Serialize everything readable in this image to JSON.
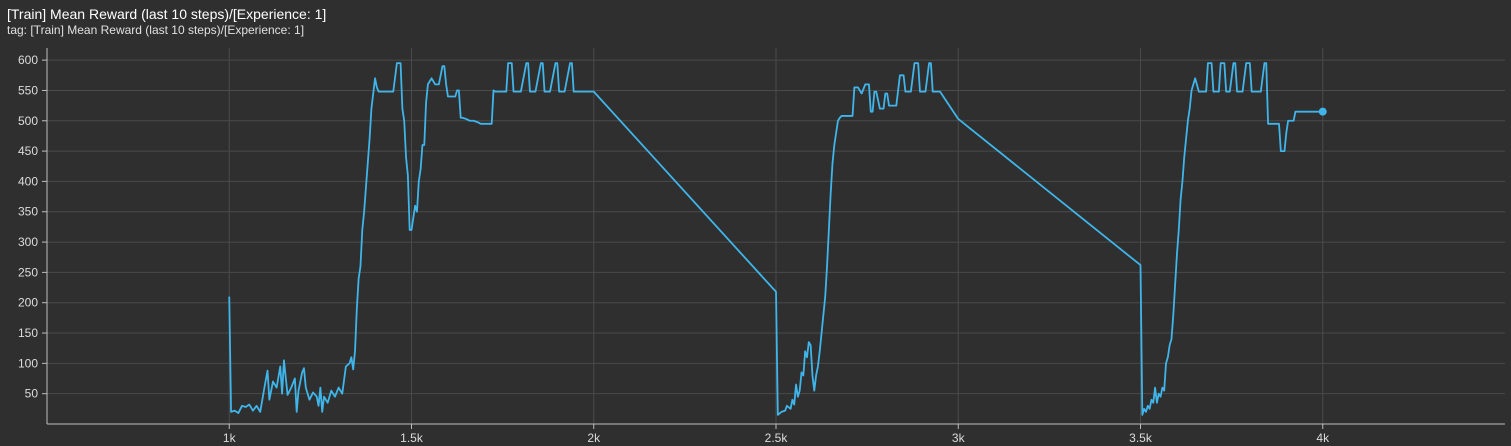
{
  "header": {
    "title": "[Train] Mean Reward (last 10 steps)/[Experience: 1]",
    "tag": "tag: [Train] Mean Reward (last 10 steps)/[Experience: 1]"
  },
  "colors": {
    "background": "#2f2f2f",
    "grid": "#4a4a4a",
    "axis": "#bdbdbd",
    "series": "#3fb5ea"
  },
  "chart_data": {
    "type": "line",
    "title": "[Train] Mean Reward (last 10 steps)/[Experience: 1]",
    "xlabel": "",
    "ylabel": "",
    "xlim": [
      500,
      4500
    ],
    "ylim": [
      0,
      620
    ],
    "grid": true,
    "x_ticks": [
      1000,
      1500,
      2000,
      2500,
      3000,
      3500,
      4000
    ],
    "x_tick_labels": [
      "1k",
      "1.5k",
      "2k",
      "2.5k",
      "3k",
      "3.5k",
      "4k"
    ],
    "y_ticks": [
      50,
      100,
      150,
      200,
      250,
      300,
      350,
      400,
      450,
      500,
      550,
      600
    ],
    "y_tick_labels": [
      "50",
      "100",
      "150",
      "200",
      "250",
      "300",
      "350",
      "400",
      "450",
      "500",
      "550",
      "600"
    ],
    "series": [
      {
        "points": [
          [
            1000,
            210
          ],
          [
            1005,
            20
          ],
          [
            1015,
            22
          ],
          [
            1025,
            18
          ],
          [
            1035,
            30
          ],
          [
            1045,
            28
          ],
          [
            1055,
            32
          ],
          [
            1065,
            22
          ],
          [
            1075,
            30
          ],
          [
            1085,
            20
          ],
          [
            1095,
            55
          ],
          [
            1105,
            88
          ],
          [
            1110,
            40
          ],
          [
            1120,
            70
          ],
          [
            1130,
            60
          ],
          [
            1140,
            95
          ],
          [
            1145,
            50
          ],
          [
            1150,
            105
          ],
          [
            1160,
            48
          ],
          [
            1170,
            60
          ],
          [
            1180,
            75
          ],
          [
            1185,
            20
          ],
          [
            1190,
            55
          ],
          [
            1200,
            85
          ],
          [
            1205,
            92
          ],
          [
            1210,
            60
          ],
          [
            1220,
            40
          ],
          [
            1230,
            52
          ],
          [
            1240,
            45
          ],
          [
            1245,
            30
          ],
          [
            1250,
            60
          ],
          [
            1255,
            20
          ],
          [
            1260,
            45
          ],
          [
            1270,
            35
          ],
          [
            1280,
            55
          ],
          [
            1290,
            45
          ],
          [
            1300,
            60
          ],
          [
            1310,
            50
          ],
          [
            1320,
            95
          ],
          [
            1330,
            100
          ],
          [
            1335,
            110
          ],
          [
            1340,
            90
          ],
          [
            1345,
            120
          ],
          [
            1350,
            190
          ],
          [
            1355,
            240
          ],
          [
            1360,
            260
          ],
          [
            1365,
            320
          ],
          [
            1370,
            350
          ],
          [
            1375,
            390
          ],
          [
            1380,
            430
          ],
          [
            1385,
            470
          ],
          [
            1390,
            520
          ],
          [
            1395,
            545
          ],
          [
            1400,
            570
          ],
          [
            1405,
            555
          ],
          [
            1410,
            548
          ],
          [
            1420,
            548
          ],
          [
            1430,
            548
          ],
          [
            1440,
            548
          ],
          [
            1450,
            548
          ],
          [
            1460,
            595
          ],
          [
            1465,
            595
          ],
          [
            1470,
            595
          ],
          [
            1475,
            520
          ],
          [
            1480,
            500
          ],
          [
            1485,
            440
          ],
          [
            1490,
            410
          ],
          [
            1495,
            320
          ],
          [
            1500,
            320
          ],
          [
            1505,
            340
          ],
          [
            1510,
            360
          ],
          [
            1515,
            350
          ],
          [
            1520,
            400
          ],
          [
            1525,
            420
          ],
          [
            1530,
            460
          ],
          [
            1535,
            460
          ],
          [
            1540,
            530
          ],
          [
            1545,
            560
          ],
          [
            1555,
            570
          ],
          [
            1565,
            560
          ],
          [
            1575,
            560
          ],
          [
            1585,
            590
          ],
          [
            1590,
            590
          ],
          [
            1595,
            560
          ],
          [
            1600,
            540
          ],
          [
            1610,
            540
          ],
          [
            1620,
            540
          ],
          [
            1625,
            550
          ],
          [
            1630,
            550
          ],
          [
            1635,
            505
          ],
          [
            1640,
            505
          ],
          [
            1650,
            503
          ],
          [
            1660,
            500
          ],
          [
            1670,
            500
          ],
          [
            1680,
            498
          ],
          [
            1690,
            495
          ],
          [
            1700,
            495
          ],
          [
            1710,
            495
          ],
          [
            1720,
            495
          ],
          [
            1725,
            550
          ],
          [
            1730,
            548
          ],
          [
            1740,
            548
          ],
          [
            1750,
            548
          ],
          [
            1760,
            548
          ],
          [
            1765,
            595
          ],
          [
            1775,
            595
          ],
          [
            1780,
            548
          ],
          [
            1790,
            548
          ],
          [
            1800,
            548
          ],
          [
            1815,
            595
          ],
          [
            1820,
            595
          ],
          [
            1825,
            548
          ],
          [
            1830,
            548
          ],
          [
            1840,
            548
          ],
          [
            1855,
            595
          ],
          [
            1860,
            595
          ],
          [
            1865,
            548
          ],
          [
            1880,
            548
          ],
          [
            1895,
            595
          ],
          [
            1900,
            595
          ],
          [
            1905,
            548
          ],
          [
            1920,
            548
          ],
          [
            1935,
            595
          ],
          [
            1940,
            595
          ],
          [
            1945,
            548
          ],
          [
            1960,
            548
          ],
          [
            1975,
            548
          ],
          [
            2000,
            548
          ],
          [
            2500,
            218
          ],
          [
            2505,
            15
          ],
          [
            2515,
            20
          ],
          [
            2525,
            22
          ],
          [
            2530,
            30
          ],
          [
            2540,
            25
          ],
          [
            2545,
            40
          ],
          [
            2550,
            32
          ],
          [
            2555,
            65
          ],
          [
            2560,
            45
          ],
          [
            2565,
            55
          ],
          [
            2570,
            85
          ],
          [
            2575,
            80
          ],
          [
            2580,
            120
          ],
          [
            2585,
            110
          ],
          [
            2590,
            135
          ],
          [
            2595,
            130
          ],
          [
            2600,
            80
          ],
          [
            2605,
            55
          ],
          [
            2610,
            80
          ],
          [
            2615,
            95
          ],
          [
            2620,
            120
          ],
          [
            2625,
            150
          ],
          [
            2630,
            180
          ],
          [
            2635,
            210
          ],
          [
            2640,
            260
          ],
          [
            2645,
            320
          ],
          [
            2650,
            380
          ],
          [
            2655,
            430
          ],
          [
            2660,
            460
          ],
          [
            2665,
            480
          ],
          [
            2670,
            500
          ],
          [
            2675,
            505
          ],
          [
            2680,
            508
          ],
          [
            2690,
            508
          ],
          [
            2700,
            508
          ],
          [
            2710,
            508
          ],
          [
            2715,
            555
          ],
          [
            2725,
            555
          ],
          [
            2735,
            545
          ],
          [
            2745,
            560
          ],
          [
            2755,
            560
          ],
          [
            2760,
            515
          ],
          [
            2765,
            515
          ],
          [
            2770,
            548
          ],
          [
            2775,
            548
          ],
          [
            2785,
            520
          ],
          [
            2795,
            520
          ],
          [
            2800,
            545
          ],
          [
            2805,
            545
          ],
          [
            2810,
            525
          ],
          [
            2820,
            525
          ],
          [
            2830,
            525
          ],
          [
            2840,
            575
          ],
          [
            2850,
            575
          ],
          [
            2855,
            548
          ],
          [
            2870,
            548
          ],
          [
            2880,
            595
          ],
          [
            2890,
            595
          ],
          [
            2895,
            548
          ],
          [
            2905,
            548
          ],
          [
            2910,
            548
          ],
          [
            2920,
            595
          ],
          [
            2925,
            595
          ],
          [
            2930,
            548
          ],
          [
            2945,
            548
          ],
          [
            2950,
            548
          ],
          [
            3000,
            503
          ],
          [
            3500,
            262
          ],
          [
            3505,
            15
          ],
          [
            3510,
            25
          ],
          [
            3515,
            20
          ],
          [
            3520,
            30
          ],
          [
            3525,
            25
          ],
          [
            3530,
            40
          ],
          [
            3535,
            35
          ],
          [
            3540,
            60
          ],
          [
            3545,
            35
          ],
          [
            3550,
            50
          ],
          [
            3555,
            45
          ],
          [
            3560,
            60
          ],
          [
            3565,
            55
          ],
          [
            3570,
            100
          ],
          [
            3575,
            110
          ],
          [
            3580,
            130
          ],
          [
            3585,
            140
          ],
          [
            3590,
            180
          ],
          [
            3595,
            230
          ],
          [
            3600,
            280
          ],
          [
            3605,
            320
          ],
          [
            3610,
            370
          ],
          [
            3615,
            400
          ],
          [
            3620,
            440
          ],
          [
            3625,
            470
          ],
          [
            3630,
            500
          ],
          [
            3635,
            520
          ],
          [
            3640,
            550
          ],
          [
            3645,
            560
          ],
          [
            3650,
            570
          ],
          [
            3660,
            548
          ],
          [
            3670,
            548
          ],
          [
            3680,
            548
          ],
          [
            3685,
            595
          ],
          [
            3695,
            595
          ],
          [
            3700,
            548
          ],
          [
            3715,
            548
          ],
          [
            3720,
            595
          ],
          [
            3730,
            595
          ],
          [
            3735,
            548
          ],
          [
            3745,
            548
          ],
          [
            3755,
            595
          ],
          [
            3760,
            595
          ],
          [
            3765,
            548
          ],
          [
            3780,
            548
          ],
          [
            3790,
            595
          ],
          [
            3800,
            595
          ],
          [
            3805,
            548
          ],
          [
            3820,
            548
          ],
          [
            3830,
            548
          ],
          [
            3840,
            595
          ],
          [
            3845,
            595
          ],
          [
            3850,
            495
          ],
          [
            3860,
            495
          ],
          [
            3870,
            495
          ],
          [
            3880,
            495
          ],
          [
            3885,
            450
          ],
          [
            3895,
            450
          ],
          [
            3900,
            480
          ],
          [
            3905,
            500
          ],
          [
            3915,
            500
          ],
          [
            3920,
            500
          ],
          [
            3925,
            515
          ],
          [
            3935,
            515
          ],
          [
            3945,
            515
          ],
          [
            3955,
            515
          ],
          [
            4000,
            515
          ]
        ]
      }
    ]
  }
}
